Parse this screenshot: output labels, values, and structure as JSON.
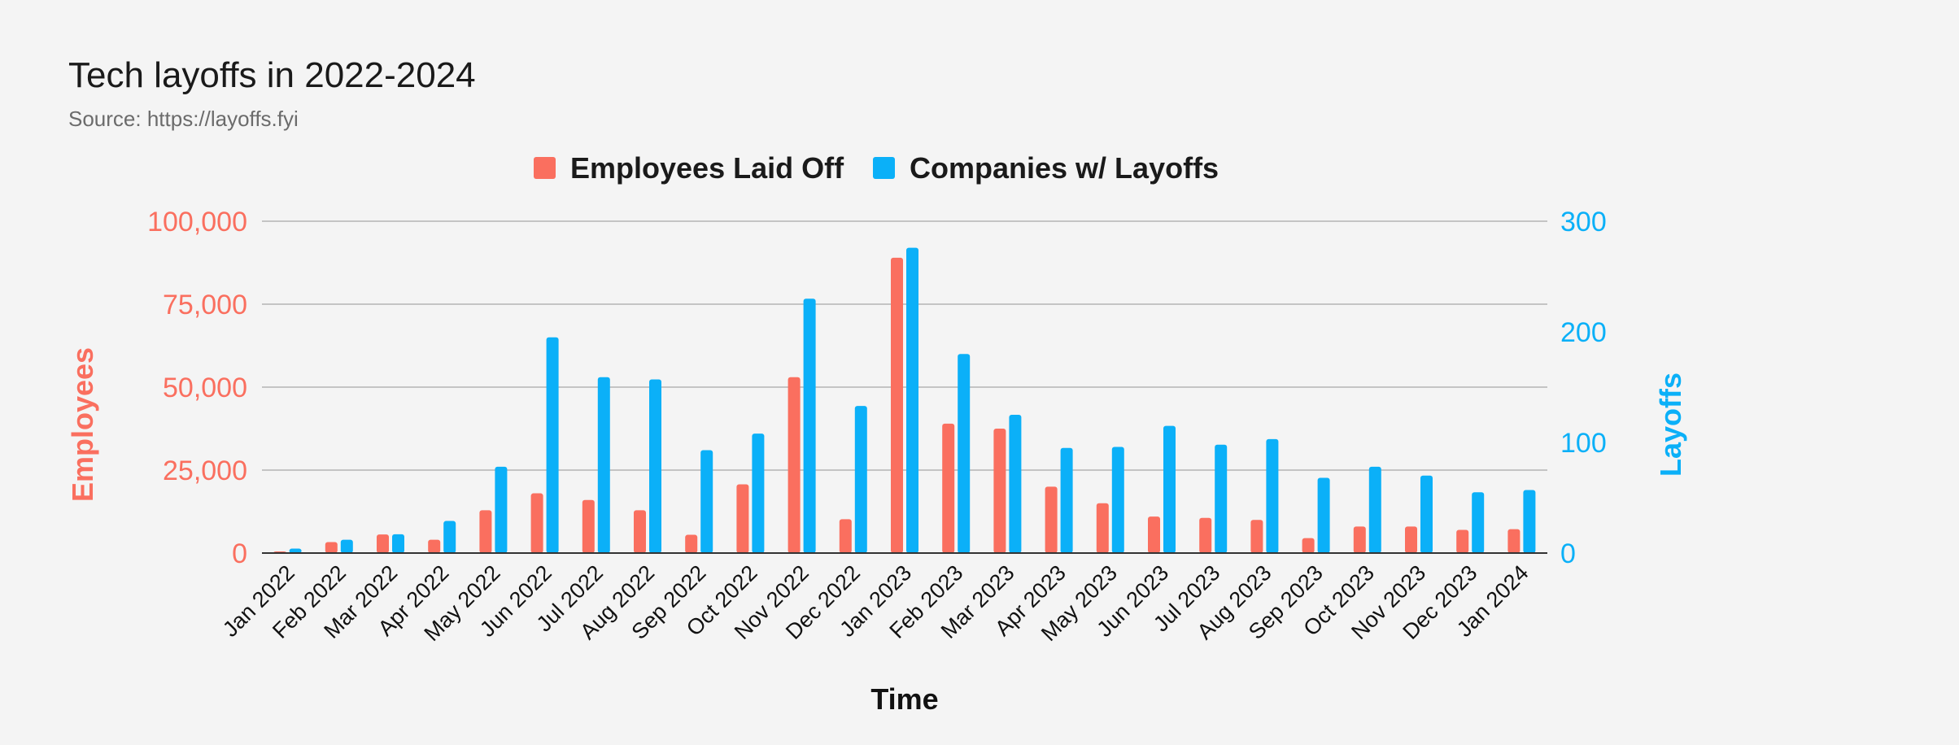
{
  "chart_data": {
    "type": "bar",
    "title": "Tech layoffs in 2022-2024",
    "subtitle": "Source: https://layoffs.fyi",
    "xlabel": "Time",
    "ylabel_left": "Employees",
    "ylabel_right": "Layoffs",
    "ylim_left": [
      0,
      100000
    ],
    "ylim_right": [
      0,
      300
    ],
    "yticks_left": [
      "0",
      "25,000",
      "50,000",
      "75,000",
      "100,000"
    ],
    "yticks_right": [
      "0",
      "100",
      "200",
      "300"
    ],
    "grid": true,
    "legend_position": "top-center",
    "categories": [
      "Jan 2022",
      "Feb 2022",
      "Mar 2022",
      "Apr 2022",
      "May 2022",
      "Jun 2022",
      "Jul 2022",
      "Aug 2022",
      "Sep 2022",
      "Oct 2022",
      "Nov 2022",
      "Dec 2022",
      "Jan 2023",
      "Feb 2023",
      "Mar 2023",
      "Apr 2023",
      "May 2023",
      "Jun 2023",
      "Jul 2023",
      "Aug 2023",
      "Sep 2023",
      "Oct 2023",
      "Nov 2023",
      "Dec 2023",
      "Jan 2024"
    ],
    "series": [
      {
        "name": "Employees Laid Off",
        "axis": "left",
        "color": "#fa6f5f",
        "values": [
          500,
          3300,
          5600,
          4000,
          12900,
          18000,
          16000,
          12900,
          5500,
          20700,
          53000,
          10200,
          89000,
          39000,
          37500,
          20000,
          15000,
          11000,
          10600,
          10000,
          4500,
          8000,
          8000,
          7000,
          7200
        ]
      },
      {
        "name": "Companies w/ Layoffs",
        "axis": "right",
        "color": "#0bb0f8",
        "values": [
          4,
          12,
          17,
          29,
          78,
          195,
          159,
          157,
          93,
          108,
          230,
          133,
          276,
          180,
          125,
          95,
          96,
          115,
          98,
          103,
          68,
          78,
          70,
          55,
          57
        ]
      }
    ]
  }
}
